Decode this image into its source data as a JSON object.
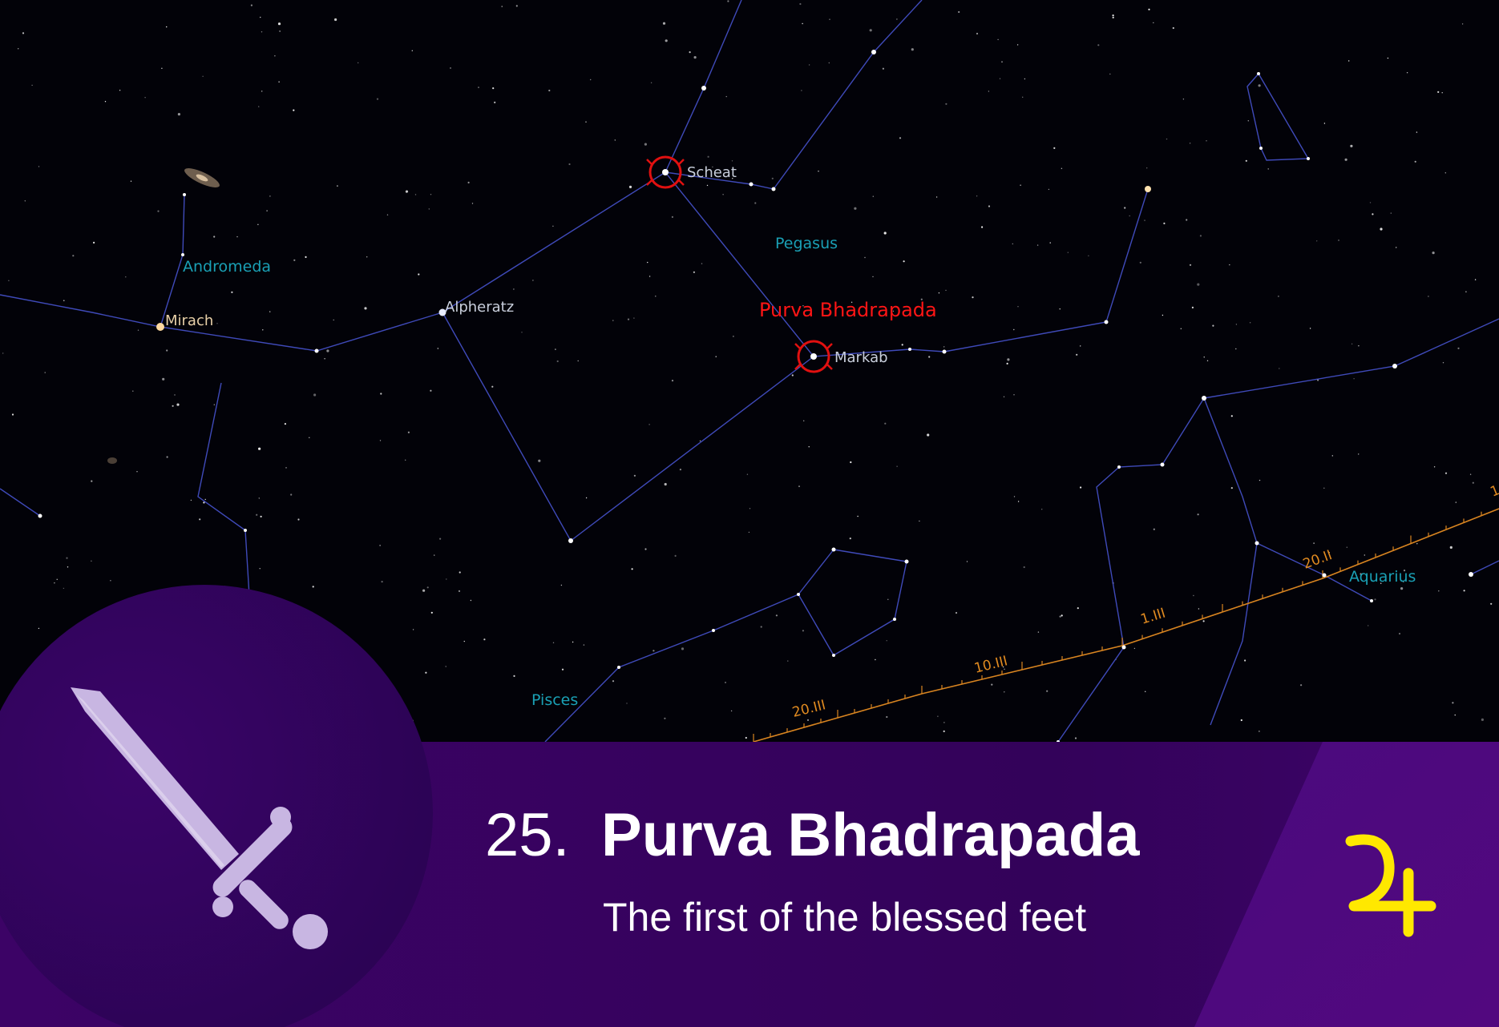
{
  "sky_map": {
    "target_label": "Purva Bhadrapada",
    "constellations": [
      "Andromeda",
      "Pegasus",
      "Aquarius",
      "Pisces"
    ],
    "stars": [
      "Scheat",
      "Alpheratz",
      "Mirach",
      "Markab"
    ],
    "ecliptic_dates": [
      "20.III",
      "10.III",
      "1.III",
      "20.II",
      "1"
    ]
  },
  "banner": {
    "number": "25.",
    "title": "Purva Bhadrapada",
    "subtitle": "The first of the blessed feet",
    "symbol_icon": "sword-icon",
    "planet_icon": "jupiter-symbol-icon"
  },
  "colors": {
    "banner_purple": "#3b0262",
    "circle_purple": "#30045a",
    "sword": "#c8b6e2",
    "jupiter_yellow": "#ffe800",
    "highlight_red": "#ff1515"
  }
}
